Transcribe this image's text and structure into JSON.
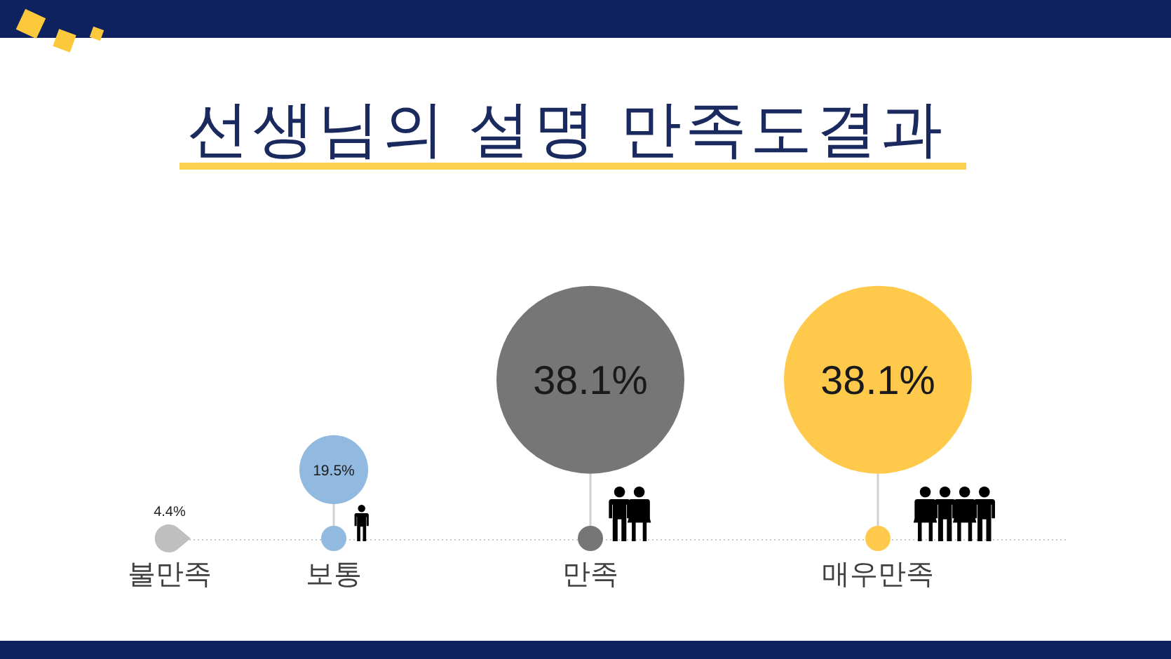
{
  "chart_data": {
    "type": "other",
    "title": "선생님의 설명 만족도결과",
    "categories": [
      "불만족",
      "보통",
      "만족",
      "매우만족"
    ],
    "values": [
      4.4,
      19.5,
      38.1,
      38.1
    ],
    "colors": [
      "#bfbfbf",
      "#92b9e0",
      "#767676",
      "#ffca4c"
    ],
    "value_labels": [
      "4.4%",
      "19.5%",
      "38.1%",
      "38.1%"
    ]
  }
}
